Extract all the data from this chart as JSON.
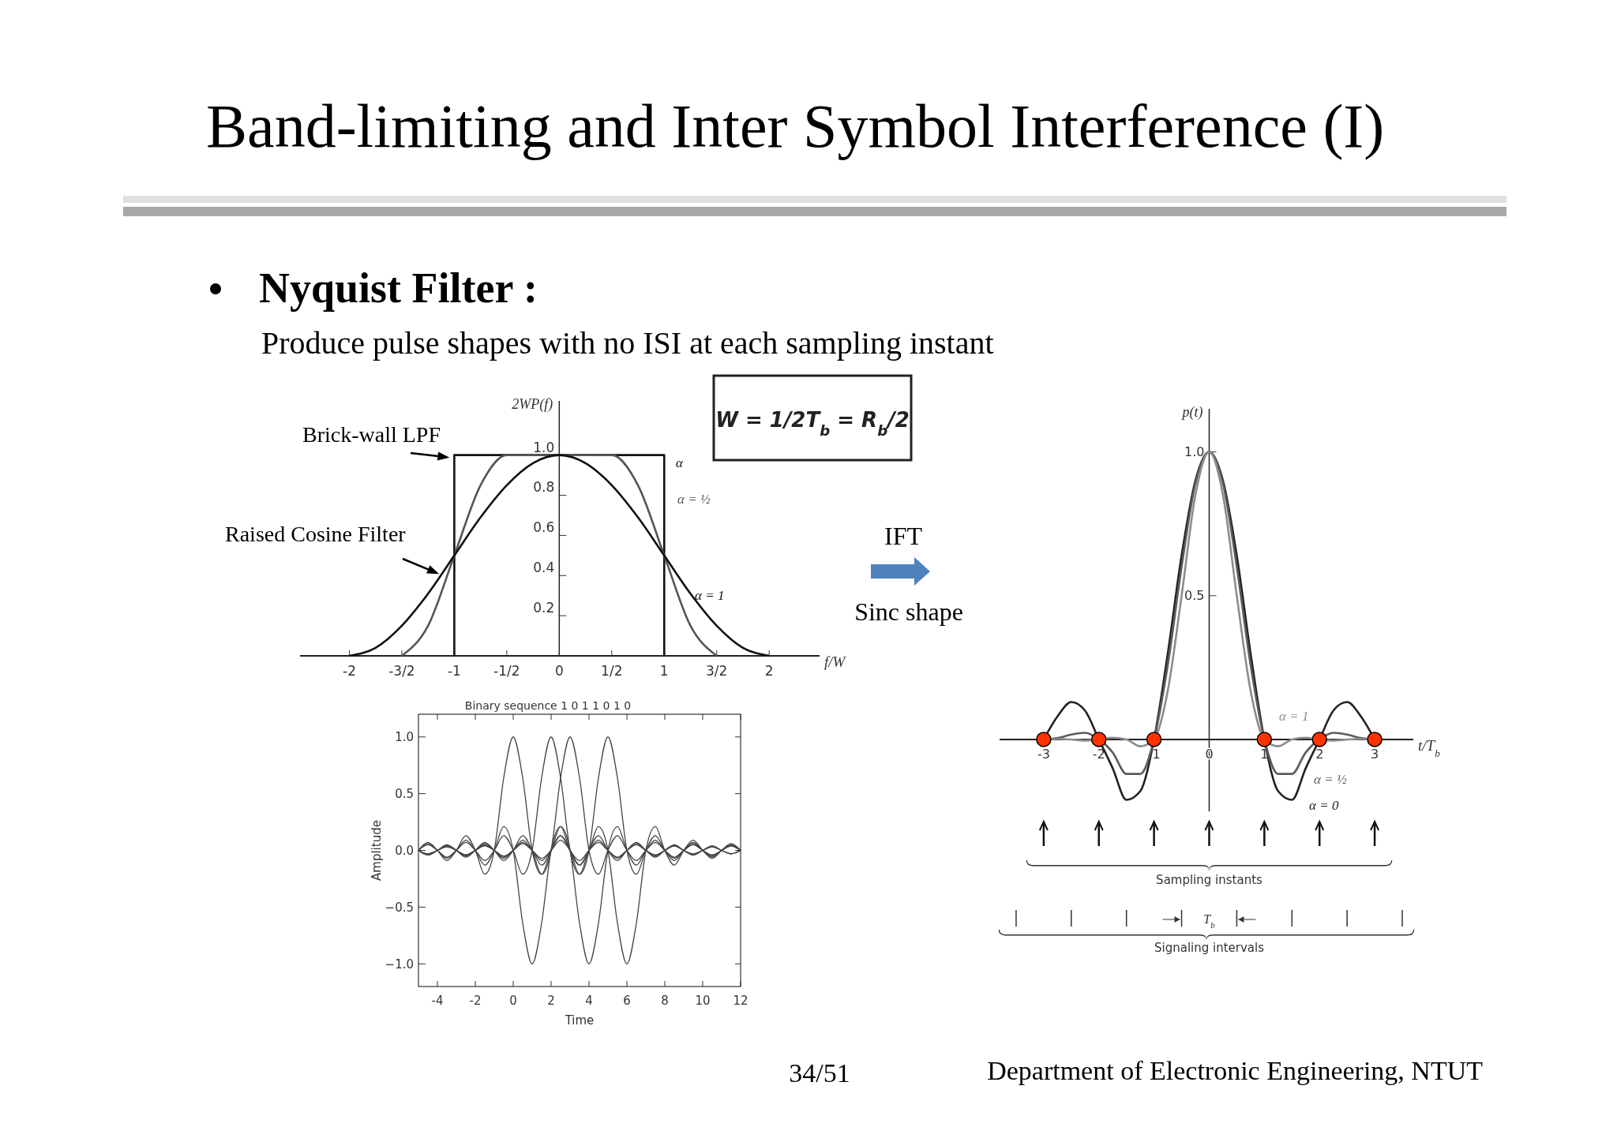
{
  "chart_data": [
    {
      "type": "line",
      "title": "Band-limiting and Inter Symbol Interference (I)",
      "subtitle": "Nyquist Filter :",
      "annotations": [
        "Produce pulse shapes with no ISI at each sampling instant",
        {
          "text": "Brick-wall LPF",
          "x": -1,
          "y": 1
        },
        {
          "text": "Raised Cosine Filter",
          "x": -1.1,
          "y": 0.42
        },
        "W = 1/2T$_{b}$ = R$_{b}$/2",
        "IFT",
        "Sinc shape"
      ],
      "xlabel": "f/W",
      "ylabel": "2WP(f)",
      "xlim": [
        -2.47,
        2.48
      ],
      "ylim": [
        0,
        1.27
      ],
      "xticks": [
        -2,
        {
          "value": -1.5,
          "label": "-3/2"
        },
        -1,
        {
          "value": -0.5,
          "label": "-1/2"
        },
        0,
        {
          "value": 0.5,
          "label": "1/2"
        },
        1,
        {
          "value": 1.5,
          "label": "3/2"
        },
        2
      ],
      "yticks": [
        0.2,
        0.4,
        0.6,
        0.8,
        {
          "value": 1,
          "label": "1.0"
        }
      ],
      "series": [
        {
          "name": "α",
          "color": "#111111",
          "x": [
            -1,
            -1,
            1,
            1
          ],
          "values": [
            0,
            1,
            1,
            0
          ]
        },
        {
          "name": "α = ½",
          "color": "#555555",
          "x": [
            -1.5,
            -1.25,
            -1,
            -0.75,
            -0.5,
            0,
            0.5,
            0.75,
            1,
            1.25,
            1.5
          ],
          "values": [
            0,
            0.15,
            0.5,
            0.85,
            1,
            1,
            1,
            0.85,
            0.5,
            0.15,
            0
          ]
        },
        {
          "name": "α = 1",
          "color": "#111111",
          "x": [
            -2,
            -1.75,
            -1.5,
            -1.25,
            -1,
            -0.75,
            -0.5,
            -0.25,
            0,
            0.25,
            0.5,
            0.75,
            1,
            1.25,
            1.5,
            1.75,
            2
          ],
          "values": [
            0,
            0.04,
            0.15,
            0.31,
            0.5,
            0.69,
            0.85,
            0.96,
            1,
            0.96,
            0.85,
            0.69,
            0.5,
            0.31,
            0.15,
            0.04,
            0
          ]
        }
      ]
    },
    {
      "type": "line",
      "title": "Binary sequence 1 0 1 1 0 1 0",
      "xlabel": "Time",
      "ylabel": "Amplitude",
      "xlim": [
        -5,
        12
      ],
      "ylim": [
        -1.2,
        1.2
      ],
      "xticks": [
        -4,
        -2,
        0,
        2,
        4,
        6,
        8,
        10,
        12
      ],
      "yticks": [
        {
          "value": -1,
          "label": "−1.0"
        },
        {
          "value": -0.5,
          "label": "−0.5"
        },
        {
          "value": 0,
          "label": "0.0"
        },
        0.5,
        {
          "value": 1,
          "label": "1.0"
        }
      ],
      "x": [
        -5,
        -4.5,
        -4,
        -3.5,
        -3,
        -2.5,
        -2,
        -1.5,
        -1,
        -0.5,
        0,
        0.5,
        1,
        1.5,
        2,
        2.5,
        3,
        3.5,
        4,
        4.5,
        5,
        5.5,
        6,
        6.5,
        7,
        7.5,
        8,
        8.5,
        9,
        9.5,
        10,
        10.5,
        11,
        11.5,
        12
      ],
      "series": [
        {
          "color": "#444444",
          "values": [
            0,
            0.07,
            0,
            -0.09,
            0,
            0.13,
            0,
            -0.21,
            0,
            0.64,
            1,
            0.64,
            0,
            -0.21,
            0,
            0.13,
            0,
            -0.09,
            0,
            0.07,
            0,
            -0.06,
            0,
            0.05,
            0,
            -0.04,
            0,
            0.04,
            0,
            -0.03,
            0,
            0.03,
            0,
            -0.03,
            0
          ]
        },
        {
          "color": "#444444",
          "values": [
            0,
            0.06,
            0,
            -0.07,
            0,
            0.09,
            0,
            -0.13,
            0,
            0.21,
            0,
            -0.64,
            -1,
            -0.64,
            0,
            0.21,
            0,
            -0.13,
            0,
            0.09,
            0,
            -0.07,
            0,
            0.06,
            0,
            -0.05,
            0,
            0.04,
            0,
            -0.04,
            0,
            0.03,
            0,
            -0.03,
            0
          ]
        },
        {
          "color": "#444444",
          "values": [
            0,
            0.05,
            0,
            -0.06,
            0,
            0.07,
            0,
            -0.09,
            0,
            0.13,
            0,
            -0.21,
            0,
            0.64,
            1,
            0.64,
            0,
            -0.21,
            0,
            0.13,
            0,
            -0.09,
            0,
            0.07,
            0,
            -0.06,
            0,
            0.05,
            0,
            -0.04,
            0,
            0.04,
            0,
            -0.03,
            0
          ]
        },
        {
          "color": "#444444",
          "values": [
            0,
            -0.04,
            0,
            0.05,
            0,
            -0.06,
            0,
            0.07,
            0,
            -0.09,
            0,
            0.13,
            0,
            -0.21,
            0,
            0.64,
            1,
            0.64,
            0,
            -0.21,
            0,
            0.13,
            0,
            -0.09,
            0,
            0.07,
            0,
            -0.06,
            0,
            0.05,
            0,
            -0.04,
            0,
            0.04,
            0
          ]
        },
        {
          "color": "#444444",
          "values": [
            0,
            -0.04,
            0,
            0.04,
            0,
            -0.05,
            0,
            0.06,
            0,
            -0.07,
            0,
            0.09,
            0,
            -0.13,
            0,
            0.21,
            0,
            -0.64,
            -1,
            -0.64,
            0,
            0.21,
            0,
            -0.13,
            0,
            0.09,
            0,
            -0.07,
            0,
            0.06,
            0,
            -0.05,
            0,
            0.04,
            0
          ]
        },
        {
          "color": "#444444",
          "values": [
            0,
            -0.03,
            0,
            0.04,
            0,
            -0.04,
            0,
            0.05,
            0,
            -0.06,
            0,
            0.07,
            0,
            -0.09,
            0,
            0.13,
            0,
            -0.21,
            0,
            0.64,
            1,
            0.64,
            0,
            -0.21,
            0,
            0.13,
            0,
            -0.09,
            0,
            0.07,
            0,
            -0.06,
            0,
            0.05,
            0
          ]
        },
        {
          "color": "#444444",
          "values": [
            0,
            -0.03,
            0,
            0.03,
            0,
            -0.04,
            0,
            0.04,
            0,
            -0.05,
            0,
            0.06,
            0,
            -0.07,
            0,
            0.09,
            0,
            -0.13,
            0,
            0.21,
            0,
            -0.64,
            -1,
            -0.64,
            0,
            0.21,
            0,
            -0.13,
            0,
            0.09,
            0,
            -0.07,
            0,
            0.06,
            0
          ]
        }
      ]
    },
    {
      "type": "line",
      "annotations": [
        "Sampling instants",
        "Signaling intervals",
        "T$_{b}$",
        "34/51",
        "Department of Electronic Engineering, NTUT"
      ],
      "xlabel": "t/T$_{b}$",
      "ylabel": "p(t)",
      "xlim": [
        -3.8,
        3.7
      ],
      "ylim": [
        -0.25,
        1.15
      ],
      "xticks": [
        -3,
        -2,
        -1,
        0,
        1,
        2,
        3
      ],
      "yticks": [
        0.5,
        {
          "value": 1,
          "label": "1.0"
        }
      ],
      "x": [
        -3,
        -2.75,
        -2.5,
        -2.25,
        -2,
        -1.75,
        -1.5,
        -1.25,
        -1,
        -0.75,
        -0.5,
        -0.25,
        0,
        0.25,
        0.5,
        0.75,
        1,
        1.25,
        1.5,
        1.75,
        2,
        2.25,
        2.5,
        2.75,
        3
      ],
      "series": [
        {
          "name": "α = 0",
          "color": "#222222",
          "values": [
            0,
            0.08,
            0.13,
            0.1,
            0,
            -0.1,
            -0.21,
            -0.18,
            0,
            0.3,
            0.64,
            0.9,
            1,
            0.9,
            0.64,
            0.3,
            0,
            -0.18,
            -0.21,
            -0.1,
            0,
            0.1,
            0.13,
            0.08,
            0
          ]
        },
        {
          "name": "α = ½",
          "color": "#5c5c5c",
          "values": [
            0,
            0.005,
            0.017,
            0.023,
            0,
            -0.045,
            -0.12,
            -0.12,
            0,
            0.26,
            0.6,
            0.89,
            1,
            0.89,
            0.6,
            0.26,
            0,
            -0.12,
            -0.12,
            -0.045,
            0,
            0.023,
            0.017,
            0.005,
            0
          ]
        },
        {
          "name": "α = 1",
          "color": "#8c8c8c",
          "values": [
            0,
            0.002,
            0,
            -0.004,
            0,
            0.006,
            0,
            -0.024,
            0,
            0.17,
            0.5,
            0.85,
            1,
            0.85,
            0.5,
            0.17,
            0,
            -0.024,
            0,
            0.006,
            0,
            -0.004,
            0,
            0.002,
            0
          ]
        },
        {
          "type": "scatter",
          "marker": "circle",
          "color": "#ff3300",
          "x": [
            -3,
            -2,
            -1,
            1,
            2,
            3
          ],
          "values": [
            0,
            0,
            0,
            0,
            0,
            0
          ]
        }
      ]
    }
  ]
}
